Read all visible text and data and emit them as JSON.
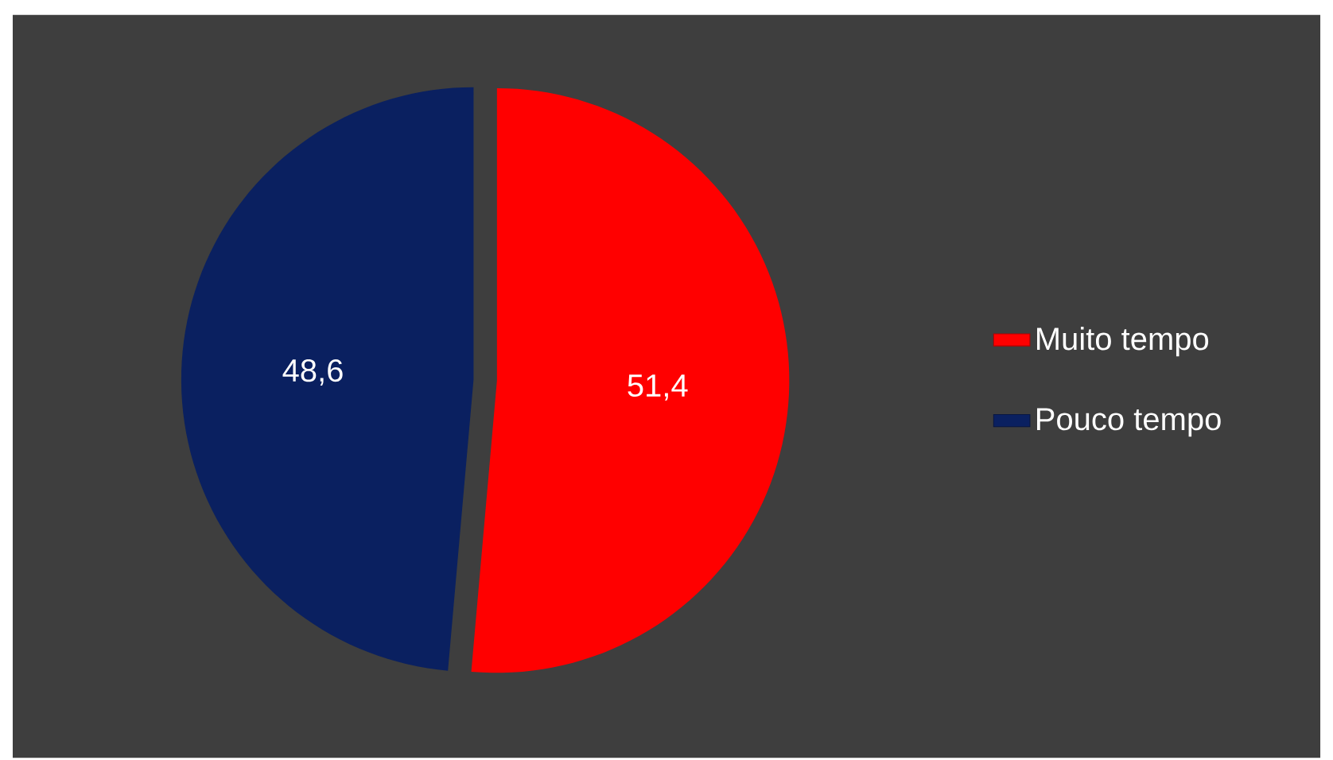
{
  "chart_data": {
    "type": "pie",
    "categories": [
      "Muito tempo",
      "Pouco tempo"
    ],
    "values": [
      51.4,
      48.6
    ],
    "value_labels": [
      "51,4",
      "48,6"
    ],
    "colors": [
      "#ff0000",
      "#0a2060"
    ],
    "legend": "right"
  }
}
